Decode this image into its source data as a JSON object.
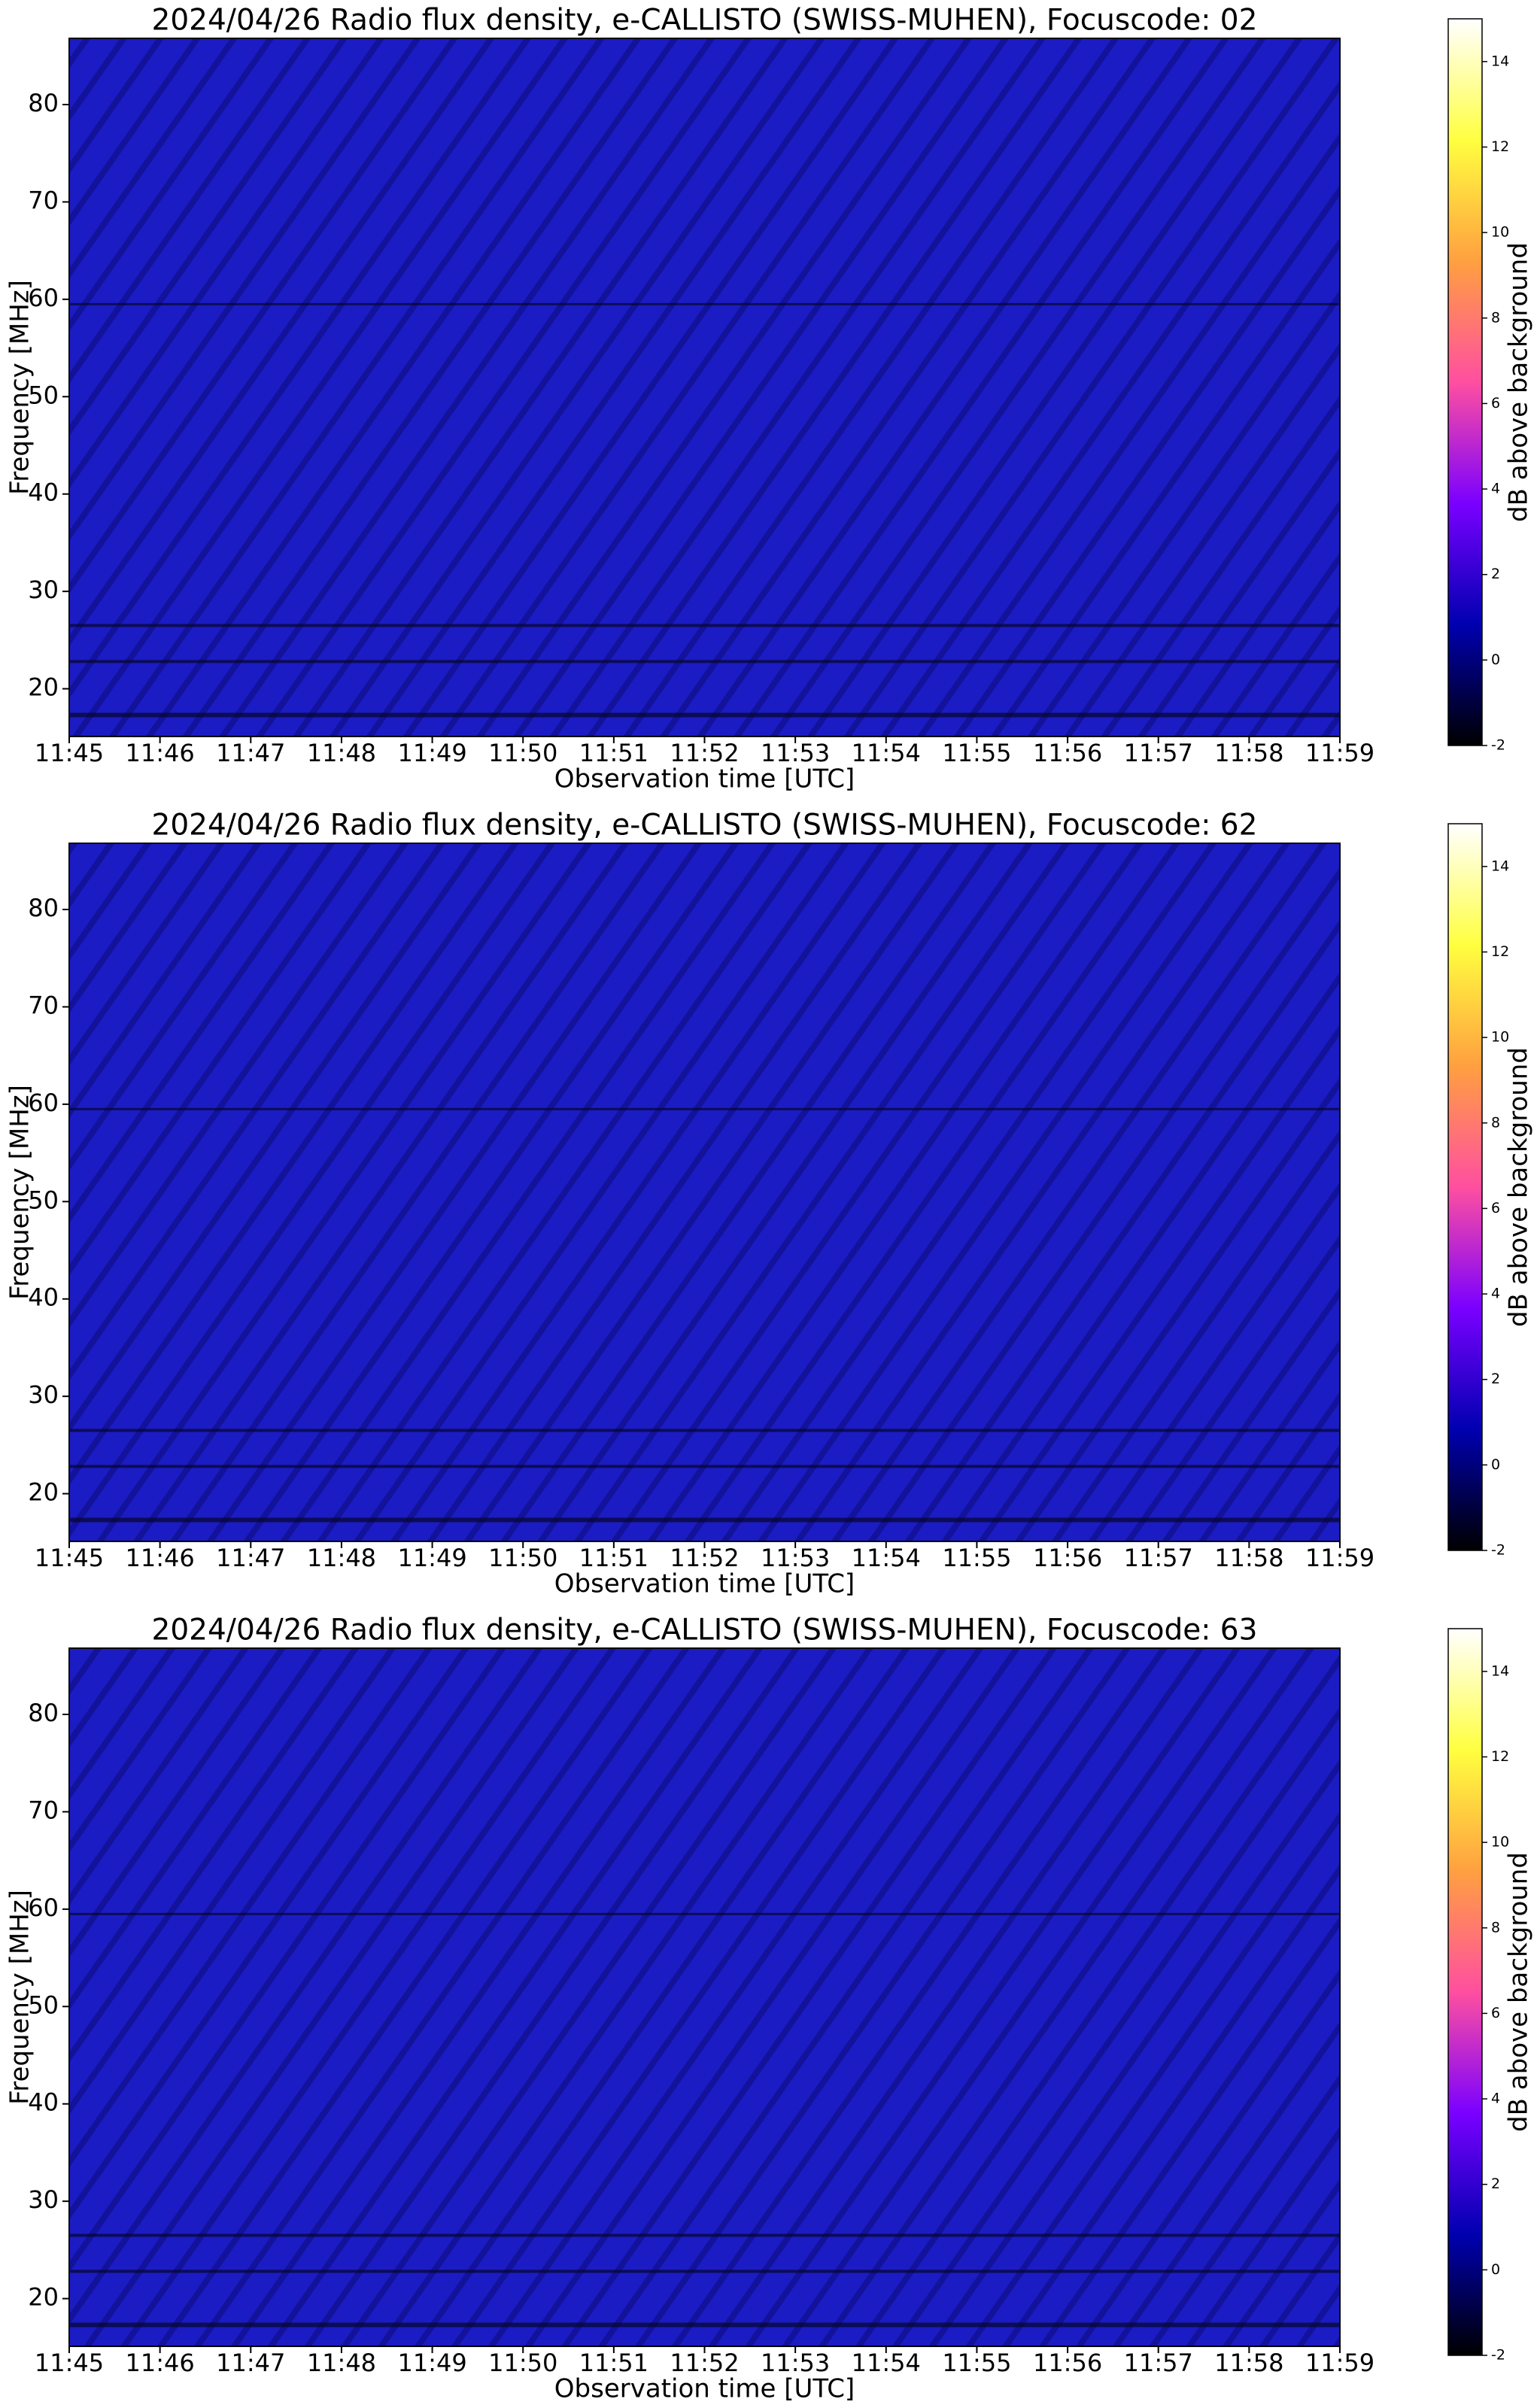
{
  "chart_data": [
    {
      "type": "heatmap",
      "title": "2024/04/26  Radio flux density, e-CALLISTO (SWISS-MUHEN), Focuscode: 02",
      "xlabel": "Observation time [UTC]",
      "ylabel": "Frequency [MHz]",
      "xticks": [
        "11:45",
        "11:46",
        "11:47",
        "11:48",
        "11:49",
        "11:50",
        "11:51",
        "11:52",
        "11:53",
        "11:54",
        "11:55",
        "11:56",
        "11:57",
        "11:58",
        "11:59"
      ],
      "ylim": [
        15.1,
        86.8
      ],
      "yticks": [
        20,
        30,
        40,
        50,
        60,
        70,
        80
      ],
      "colorbar_label": "dB above background",
      "clim": [
        -2,
        15
      ],
      "cticks": [
        -2,
        0,
        2,
        4,
        6,
        8,
        10,
        12,
        14
      ],
      "colormap": [
        "#000000",
        "#0000b0",
        "#7a00ff",
        "#ff4fa0",
        "#ffa040",
        "#ffff40",
        "#ffffff"
      ]
    },
    {
      "type": "heatmap",
      "title": "2024/04/26  Radio flux density, e-CALLISTO (SWISS-MUHEN), Focuscode: 62",
      "xlabel": "Observation time [UTC]",
      "ylabel": "Frequency [MHz]",
      "xticks": [
        "11:45",
        "11:46",
        "11:47",
        "11:48",
        "11:49",
        "11:50",
        "11:51",
        "11:52",
        "11:53",
        "11:54",
        "11:55",
        "11:56",
        "11:57",
        "11:58",
        "11:59"
      ],
      "ylim": [
        15.1,
        86.8
      ],
      "yticks": [
        20,
        30,
        40,
        50,
        60,
        70,
        80
      ],
      "colorbar_label": "dB above background",
      "clim": [
        -2,
        15
      ],
      "cticks": [
        -2,
        0,
        2,
        4,
        6,
        8,
        10,
        12,
        14
      ],
      "colormap": [
        "#000000",
        "#0000b0",
        "#7a00ff",
        "#ff4fa0",
        "#ffa040",
        "#ffff40",
        "#ffffff"
      ]
    },
    {
      "type": "heatmap",
      "title": "2024/04/26  Radio flux density, e-CALLISTO (SWISS-MUHEN), Focuscode: 63",
      "xlabel": "Observation time [UTC]",
      "ylabel": "Frequency [MHz]",
      "xticks": [
        "11:45",
        "11:46",
        "11:47",
        "11:48",
        "11:49",
        "11:50",
        "11:51",
        "11:52",
        "11:53",
        "11:54",
        "11:55",
        "11:56",
        "11:57",
        "11:58",
        "11:59"
      ],
      "ylim": [
        15.1,
        86.8
      ],
      "yticks": [
        20,
        30,
        40,
        50,
        60,
        70,
        80
      ],
      "colorbar_label": "dB above background",
      "clim": [
        -2,
        15
      ],
      "cticks": [
        -2,
        0,
        2,
        4,
        6,
        8,
        10,
        12,
        14
      ],
      "colormap": [
        "#000000",
        "#0000b0",
        "#7a00ff",
        "#ff4fa0",
        "#ffa040",
        "#ffff40",
        "#ffffff"
      ]
    }
  ]
}
